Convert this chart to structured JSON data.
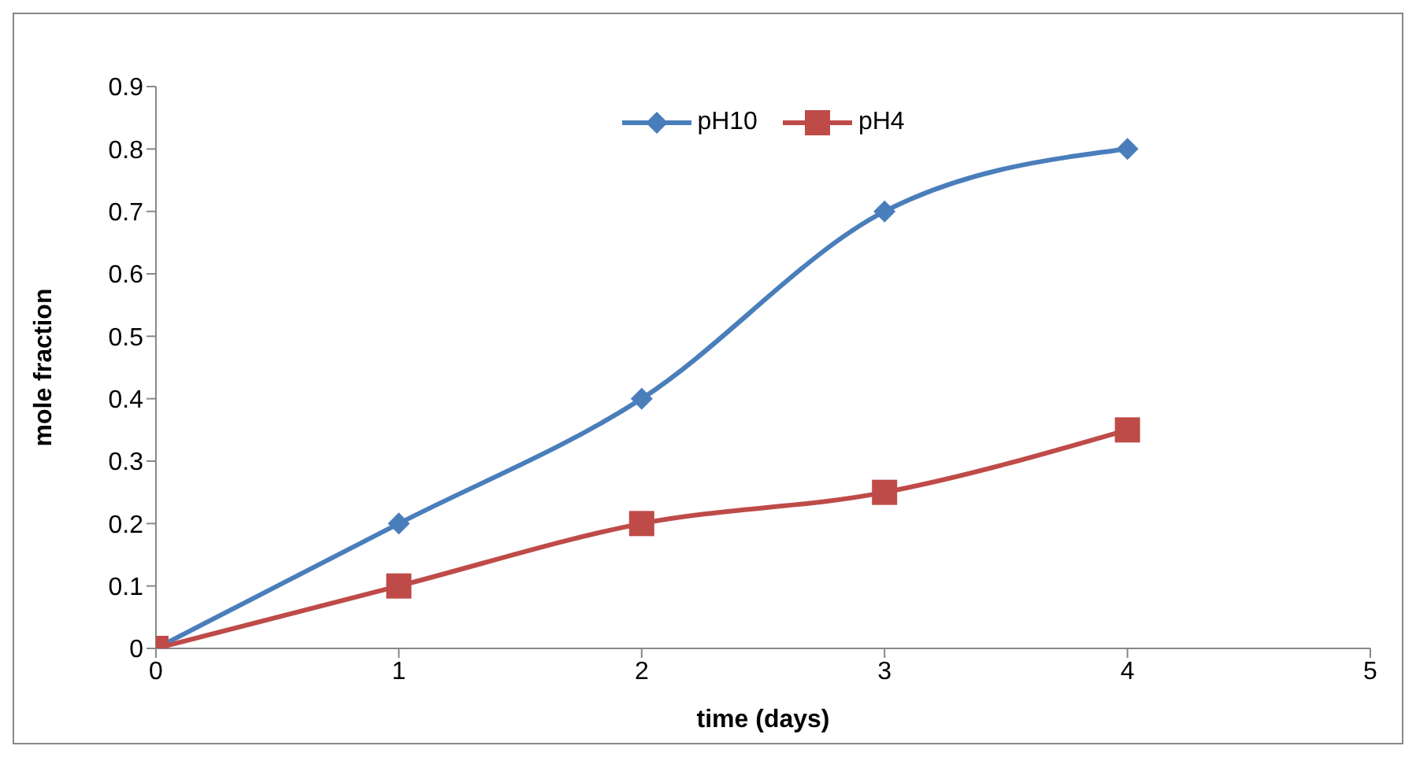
{
  "chart_data": {
    "type": "line",
    "xlabel": "time (days)",
    "ylabel": "mole fraction",
    "x": [
      0,
      1,
      2,
      3,
      4
    ],
    "series": [
      {
        "name": "pH10",
        "color": "#4a7ebb",
        "values": [
          0,
          0.2,
          0.4,
          0.7,
          0.8
        ],
        "marker": "diamond"
      },
      {
        "name": "pH4",
        "color": "#be4b48",
        "values": [
          0,
          0.1,
          0.2,
          0.25,
          0.35
        ],
        "marker": "square"
      }
    ],
    "xlim": [
      0,
      5
    ],
    "xticks": [
      0,
      1,
      2,
      3,
      4,
      5
    ],
    "ylim": [
      0,
      0.9
    ],
    "yticks": [
      0,
      0.1,
      0.2,
      0.3,
      0.4,
      0.5,
      0.6,
      0.7,
      0.8,
      0.9
    ],
    "grid": false,
    "legend": "top"
  }
}
